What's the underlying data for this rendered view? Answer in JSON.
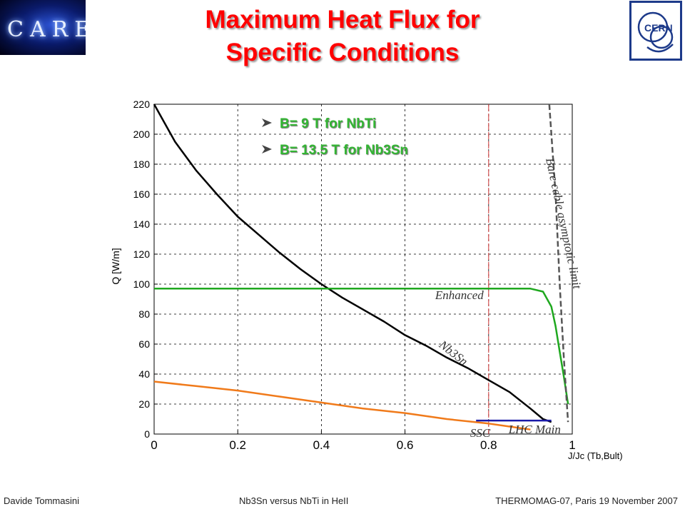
{
  "header": {
    "title_line1": "Maximum Heat Flux for",
    "title_line2": "Specific Conditions",
    "logo_left_text": "CARE",
    "logo_right_text": "CERN"
  },
  "legend": [
    {
      "label": "B= 9 T for NbTi"
    },
    {
      "label": "B= 13.5 T for Nb3Sn"
    }
  ],
  "chart_data": {
    "type": "line",
    "title": "",
    "ylabel": "Q [W/m]",
    "xlabel": "J/Jc (Tb,Bult)",
    "xlim": [
      0,
      1.0
    ],
    "ylim": [
      0,
      220
    ],
    "xticks": [
      "0",
      "0.2",
      "0.4",
      "0.6",
      "0.8",
      "1"
    ],
    "yticks": [
      "0",
      "20",
      "40",
      "60",
      "80",
      "100",
      "120",
      "140",
      "160",
      "180",
      "200",
      "220"
    ],
    "grid": true,
    "series": [
      {
        "name": "Nb3Sn",
        "color": "#000000",
        "x": [
          0.0,
          0.05,
          0.1,
          0.15,
          0.2,
          0.25,
          0.3,
          0.35,
          0.4,
          0.45,
          0.5,
          0.55,
          0.6,
          0.65,
          0.7,
          0.75,
          0.8,
          0.85,
          0.9,
          0.93,
          0.95
        ],
        "y": [
          220,
          195,
          176,
          160,
          145,
          133,
          121,
          110,
          100,
          91,
          83,
          75,
          66,
          59,
          51,
          44,
          36,
          28,
          17,
          10,
          8
        ]
      },
      {
        "name": "Enhanced",
        "color": "#1fa81f",
        "x": [
          0.0,
          0.1,
          0.2,
          0.3,
          0.4,
          0.5,
          0.6,
          0.7,
          0.8,
          0.9,
          0.93,
          0.95,
          0.96,
          0.97,
          0.98,
          0.99
        ],
        "y": [
          97,
          97,
          97,
          97,
          97,
          97,
          97,
          97,
          97,
          97,
          95,
          85,
          72,
          55,
          38,
          20
        ]
      },
      {
        "name": "",
        "color": "#f07a1a",
        "x": [
          0.0,
          0.1,
          0.2,
          0.3,
          0.4,
          0.5,
          0.6,
          0.7,
          0.8,
          0.85,
          0.9
        ],
        "y": [
          35,
          32,
          29,
          25,
          21,
          17,
          14,
          10,
          7,
          5,
          3
        ]
      },
      {
        "name": "",
        "color": "#1a1aa8",
        "x": [
          0.77,
          0.8,
          0.85,
          0.9,
          0.95
        ],
        "y": [
          9,
          9,
          9,
          9,
          9
        ]
      },
      {
        "name": "",
        "color": "#555555",
        "dashed": true,
        "x": [
          0.945,
          0.96,
          0.97,
          0.98,
          0.99
        ],
        "y": [
          220,
          160,
          100,
          50,
          8
        ]
      }
    ],
    "vertical_markers": [
      {
        "x": 0.8,
        "color": "#cc3333"
      }
    ],
    "annotations": [
      {
        "text": "Bare cable asymptotic limit",
        "x": 0.97,
        "y": 140,
        "rotate": 78
      },
      {
        "text": "Enhanced",
        "x": 0.73,
        "y": 90
      },
      {
        "text": "Nb3Sn",
        "x": 0.71,
        "y": 52,
        "rotate": 38
      },
      {
        "text": "SSC",
        "x": 0.78,
        "y": -2
      },
      {
        "text": "LHC Main",
        "x": 0.91,
        "y": 0.5
      }
    ]
  },
  "footer": {
    "author": "Davide Tommasini",
    "talk": "Nb3Sn versus NbTi in HeII",
    "event": "THERMOMAG-07, Paris 19 November 2007"
  },
  "colors": {
    "title": "#ff0000",
    "legend_text": "#33b533"
  }
}
